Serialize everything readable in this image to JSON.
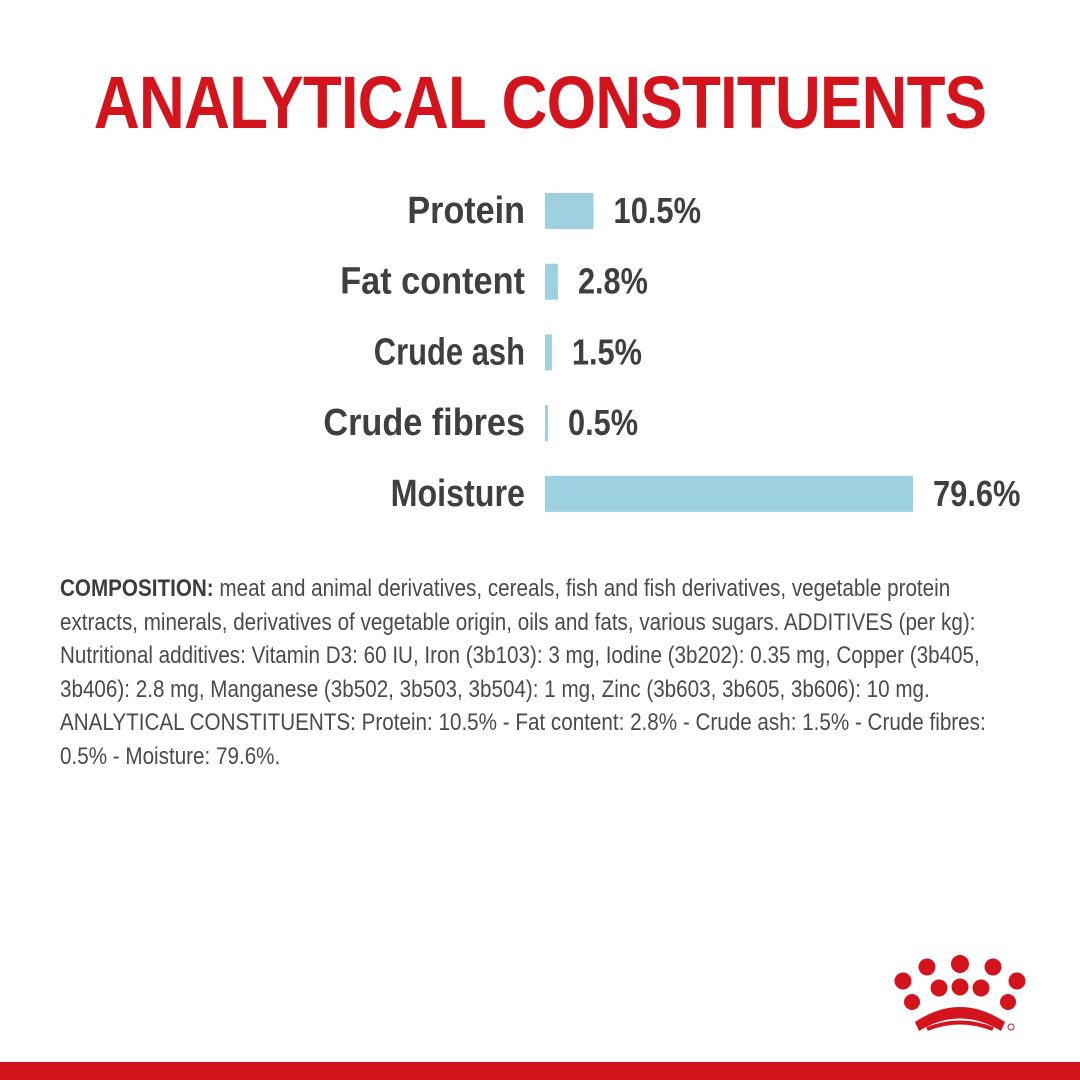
{
  "brand": {
    "accent_color": "#d3141c",
    "bar_color": "#9dd1e0",
    "text_color": "#3f3f3f",
    "logo_icon": "crown-dots-logo-icon"
  },
  "chart_data": {
    "type": "bar",
    "orientation": "horizontal",
    "title": "ANALYTICAL CONSTITUENTS",
    "categories": [
      "Protein",
      "Fat content",
      "Crude ash",
      "Crude fibres",
      "Moisture"
    ],
    "values": [
      10.5,
      2.8,
      1.5,
      0.5,
      79.6
    ],
    "value_labels": [
      "10.5%",
      "2.8%",
      "1.5%",
      "0.5%",
      "79.6%"
    ],
    "unit": "%",
    "xlim": [
      0,
      79.6
    ],
    "grid": false,
    "legend": "none",
    "data_labels": "right of bar"
  },
  "composition": {
    "label": "COMPOSITION:",
    "text": " meat and animal derivatives, cereals, fish and fish derivatives, vegetable protein extracts, minerals, derivatives of vegetable origin, oils and fats, various sugars. ADDITIVES (per kg): Nutritional additives: Vitamin D3: 60 IU, Iron (3b103): 3 mg, Iodine (3b202): 0.35 mg, Copper (3b405, 3b406): 2.8 mg, Manganese (3b502, 3b503, 3b504): 1 mg, Zinc (3b603, 3b605, 3b606): 10 mg. ANALYTICAL CONSTITUENTS: Protein: 10.5% - Fat content: 2.8% - Crude ash: 1.5% - Crude fibres: 0.5% - Moisture: 79.6%."
  }
}
